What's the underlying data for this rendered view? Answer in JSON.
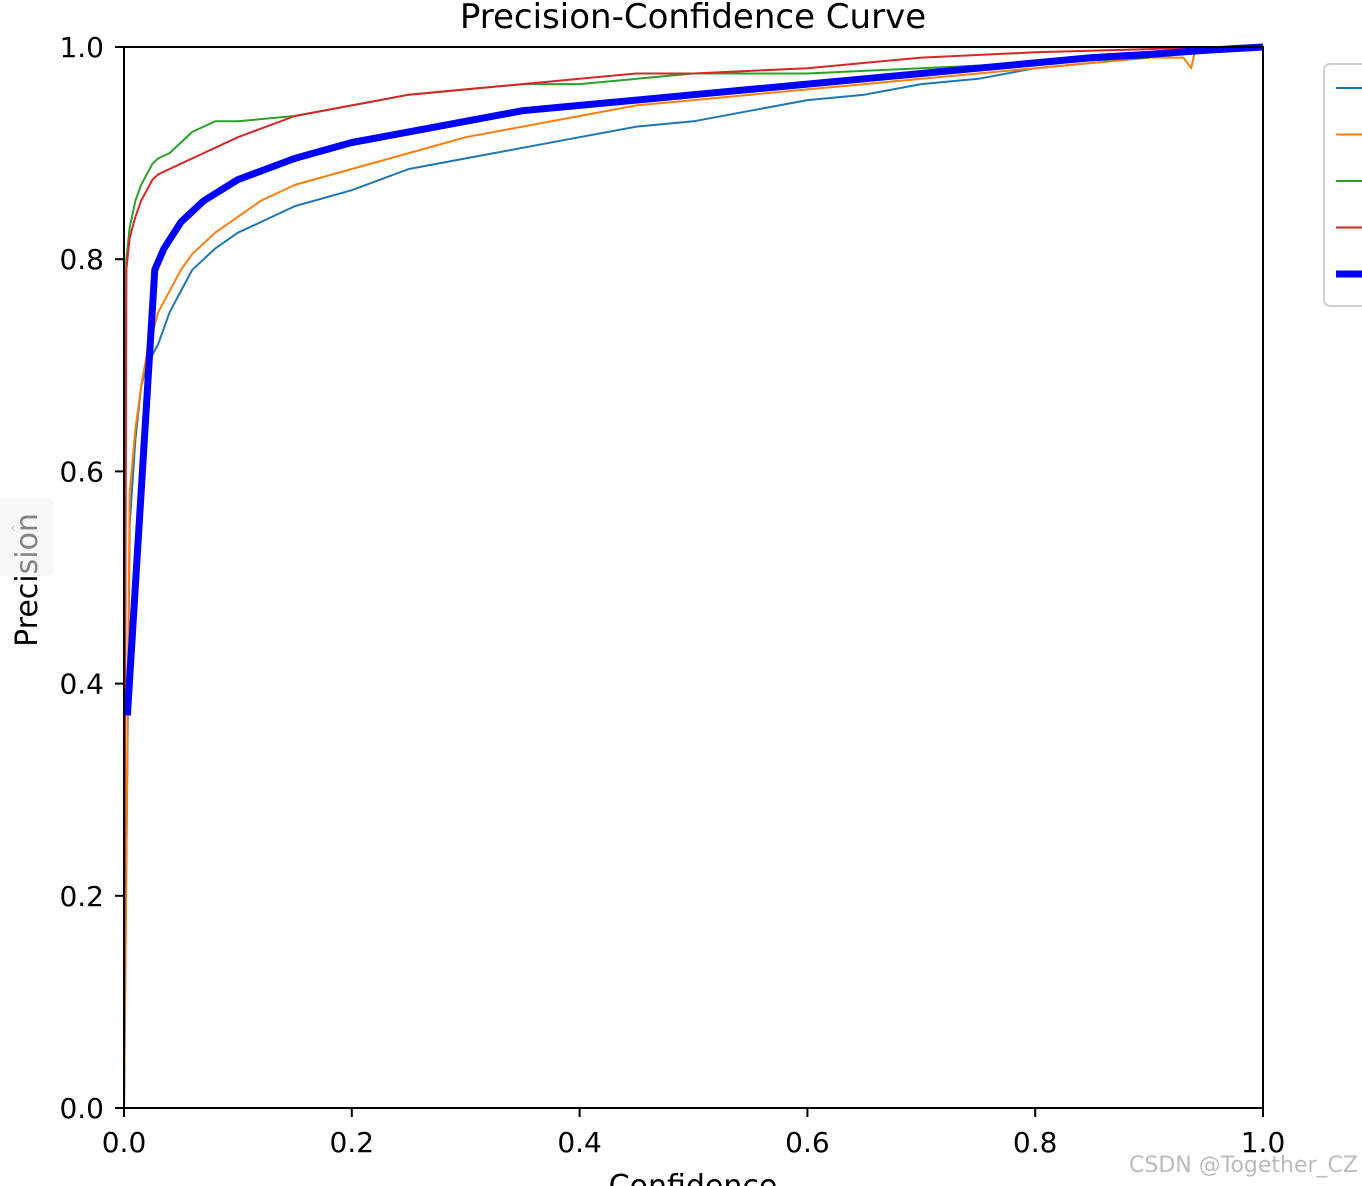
{
  "chart_data": {
    "type": "line",
    "title": "Precision-Confidence Curve",
    "xlabel": "Confidence",
    "ylabel": "Precision",
    "xlim": [
      0.0,
      1.0
    ],
    "ylim": [
      0.0,
      1.0
    ],
    "xticks": [
      "0.0",
      "0.2",
      "0.4",
      "0.6",
      "0.8",
      "1.0"
    ],
    "yticks": [
      "0.0",
      "0.2",
      "0.4",
      "0.6",
      "0.8",
      "1.0"
    ],
    "grid": false,
    "legend_position": "right (clipped)",
    "series": [
      {
        "color": "#1f77b4",
        "width": 2,
        "x": [
          0.0,
          0.005,
          0.01,
          0.015,
          0.02,
          0.025,
          0.03,
          0.04,
          0.05,
          0.06,
          0.07,
          0.08,
          0.1,
          0.12,
          0.15,
          0.2,
          0.25,
          0.3,
          0.35,
          0.4,
          0.45,
          0.5,
          0.55,
          0.6,
          0.65,
          0.7,
          0.75,
          0.8,
          0.85,
          0.9
        ],
        "y": [
          0.0,
          0.55,
          0.63,
          0.68,
          0.7,
          0.71,
          0.72,
          0.75,
          0.77,
          0.79,
          0.8,
          0.81,
          0.825,
          0.835,
          0.85,
          0.865,
          0.885,
          0.895,
          0.905,
          0.915,
          0.925,
          0.93,
          0.94,
          0.95,
          0.955,
          0.965,
          0.97,
          0.98,
          0.985,
          0.99
        ]
      },
      {
        "color": "#ff7f0e",
        "width": 2,
        "x": [
          0.0,
          0.005,
          0.01,
          0.015,
          0.02,
          0.025,
          0.03,
          0.04,
          0.05,
          0.06,
          0.07,
          0.08,
          0.1,
          0.12,
          0.15,
          0.2,
          0.25,
          0.3,
          0.35,
          0.4,
          0.45,
          0.5,
          0.55,
          0.6,
          0.65,
          0.7,
          0.75,
          0.8,
          0.85,
          0.9,
          0.93,
          0.937,
          0.94,
          0.96,
          1.0
        ],
        "y": [
          0.0,
          0.58,
          0.64,
          0.68,
          0.71,
          0.73,
          0.75,
          0.77,
          0.79,
          0.805,
          0.815,
          0.825,
          0.84,
          0.855,
          0.87,
          0.885,
          0.9,
          0.915,
          0.925,
          0.935,
          0.945,
          0.95,
          0.955,
          0.96,
          0.965,
          0.97,
          0.975,
          0.98,
          0.985,
          0.99,
          0.99,
          0.98,
          0.995,
          1.0,
          1.0
        ]
      },
      {
        "color": "#2ca02c",
        "width": 2,
        "x": [
          0.0,
          0.002,
          0.005,
          0.01,
          0.015,
          0.02,
          0.025,
          0.03,
          0.04,
          0.05,
          0.06,
          0.07,
          0.08,
          0.1,
          0.15,
          0.2,
          0.25,
          0.3,
          0.35,
          0.4,
          0.45,
          0.5,
          0.55,
          0.6,
          0.7,
          0.8,
          0.9
        ],
        "y": [
          0.0,
          0.8,
          0.83,
          0.855,
          0.87,
          0.88,
          0.89,
          0.895,
          0.9,
          0.91,
          0.92,
          0.925,
          0.93,
          0.93,
          0.935,
          0.945,
          0.955,
          0.96,
          0.965,
          0.965,
          0.97,
          0.975,
          0.975,
          0.975,
          0.98,
          0.985,
          0.99
        ]
      },
      {
        "color": "#d62728",
        "width": 2,
        "x": [
          0.0,
          0.002,
          0.005,
          0.01,
          0.015,
          0.02,
          0.025,
          0.03,
          0.04,
          0.05,
          0.06,
          0.07,
          0.08,
          0.1,
          0.15,
          0.2,
          0.25,
          0.3,
          0.35,
          0.4,
          0.45,
          0.5,
          0.6,
          0.7,
          0.8,
          0.9,
          0.95,
          1.0
        ],
        "y": [
          0.0,
          0.79,
          0.82,
          0.84,
          0.855,
          0.865,
          0.875,
          0.88,
          0.885,
          0.89,
          0.895,
          0.9,
          0.905,
          0.915,
          0.935,
          0.945,
          0.955,
          0.96,
          0.965,
          0.97,
          0.975,
          0.975,
          0.98,
          0.99,
          0.995,
          0.998,
          1.0,
          1.0
        ]
      },
      {
        "color": "#0000ff",
        "width": 7,
        "x": [
          0.003,
          0.015,
          0.027,
          0.035,
          0.05,
          0.07,
          0.1,
          0.15,
          0.2,
          0.25,
          0.3,
          0.35,
          0.4,
          0.45,
          0.5,
          0.55,
          0.6,
          0.65,
          0.7,
          0.75,
          0.8,
          0.85,
          0.9,
          0.95,
          1.0
        ],
        "y": [
          0.37,
          0.58,
          0.79,
          0.81,
          0.835,
          0.855,
          0.875,
          0.895,
          0.91,
          0.92,
          0.93,
          0.94,
          0.945,
          0.95,
          0.955,
          0.96,
          0.965,
          0.97,
          0.975,
          0.98,
          0.985,
          0.99,
          0.993,
          0.997,
          1.0
        ]
      }
    ]
  },
  "watermark": "CSDN @Together_CZ",
  "side_tab": {
    "icon": "chevron-left-icon",
    "glyph": "‹"
  }
}
